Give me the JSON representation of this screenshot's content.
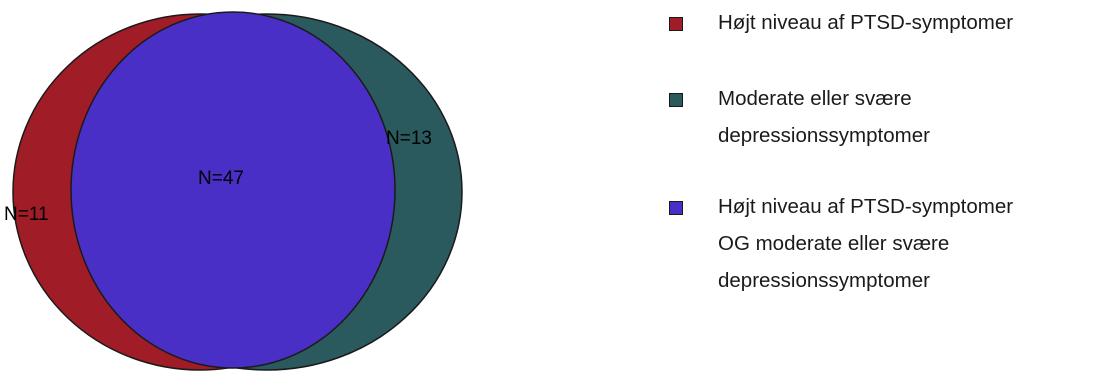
{
  "colors": {
    "ptsd": "#A01C27",
    "depression": "#2A5A5E",
    "both": "#4A2FC7",
    "outline": "#1a1a1a"
  },
  "diagram": {
    "labels": {
      "ptsd_only": "N=11",
      "both": "N=47",
      "depression_only": "N=13"
    }
  },
  "legend": {
    "items": [
      {
        "key": "ptsd",
        "lines": [
          "Højt niveau af PTSD-symptomer"
        ]
      },
      {
        "key": "depression",
        "lines": [
          "Moderate eller svære",
          "depressionssymptomer"
        ]
      },
      {
        "key": "both",
        "lines": [
          "Højt niveau af PTSD-symptomer",
          "OG moderate eller svære",
          "depressionssymptomer"
        ]
      }
    ]
  }
}
